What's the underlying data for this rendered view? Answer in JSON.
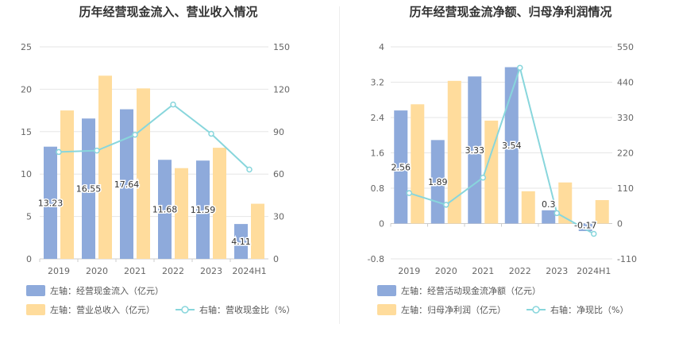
{
  "chart_data": [
    {
      "type": "bar",
      "title": "历年经营现金流入、营业收入情况",
      "categories": [
        "2019",
        "2020",
        "2021",
        "2022",
        "2023",
        "2024H1"
      ],
      "left_axis": {
        "min": 0,
        "max": 25,
        "ticks": [
          "0",
          "5",
          "10",
          "15",
          "20",
          "25"
        ]
      },
      "right_axis": {
        "min": 0,
        "max": 150,
        "ticks": [
          "0",
          "30",
          "60",
          "90",
          "120",
          "150"
        ]
      },
      "series": [
        {
          "name": "左轴：经营现金流入（亿元）",
          "kind": "bar",
          "axis": "left",
          "color": "#8eaadb",
          "values": [
            13.23,
            16.55,
            17.64,
            11.68,
            11.59,
            4.11
          ],
          "labels": [
            "13.23",
            "16.55",
            "17.64",
            "11.68",
            "11.59",
            "4.11"
          ]
        },
        {
          "name": "左轴：营业总收入（亿元）",
          "kind": "bar",
          "axis": "left",
          "color": "#ffdc9c",
          "values": [
            17.5,
            21.6,
            20.1,
            10.7,
            13.1,
            6.5
          ]
        },
        {
          "name": "右轴：营收现金比（%）",
          "kind": "line",
          "axis": "right",
          "color": "#88d6dc",
          "values": [
            75.6,
            76.6,
            87.8,
            109.2,
            88.5,
            63.2
          ]
        }
      ],
      "legend": "bottom-left",
      "grid": true
    },
    {
      "type": "bar",
      "title": "历年经营现金流净额、归母净利润情况",
      "categories": [
        "2019",
        "2020",
        "2021",
        "2022",
        "2023",
        "2024H1"
      ],
      "left_axis": {
        "min": -0.8,
        "max": 4,
        "ticks": [
          "-0.8",
          "0",
          "0.8",
          "1.6",
          "2.4",
          "3.2",
          "4"
        ]
      },
      "right_axis": {
        "min": -110,
        "max": 550,
        "ticks": [
          "-110",
          "0",
          "110",
          "220",
          "330",
          "440",
          "550"
        ]
      },
      "series": [
        {
          "name": "左轴：经营活动现金流净额（亿元）",
          "kind": "bar",
          "axis": "left",
          "color": "#8eaadb",
          "values": [
            2.56,
            1.89,
            3.33,
            3.54,
            0.3,
            -0.17
          ],
          "labels": [
            "2.56",
            "1.89",
            "3.33",
            "3.54",
            "0.3",
            "-0.17"
          ]
        },
        {
          "name": "左轴：归母净利润（亿元）",
          "kind": "bar",
          "axis": "left",
          "color": "#ffdc9c",
          "values": [
            2.7,
            3.23,
            2.33,
            0.73,
            0.93,
            0.53
          ]
        },
        {
          "name": "右轴：净现比（%）",
          "kind": "line",
          "axis": "right",
          "color": "#88d6dc",
          "values": [
            94.8,
            58.5,
            142.9,
            484.9,
            32.3,
            -32.1
          ]
        }
      ],
      "legend": "bottom-left",
      "grid": true
    }
  ]
}
